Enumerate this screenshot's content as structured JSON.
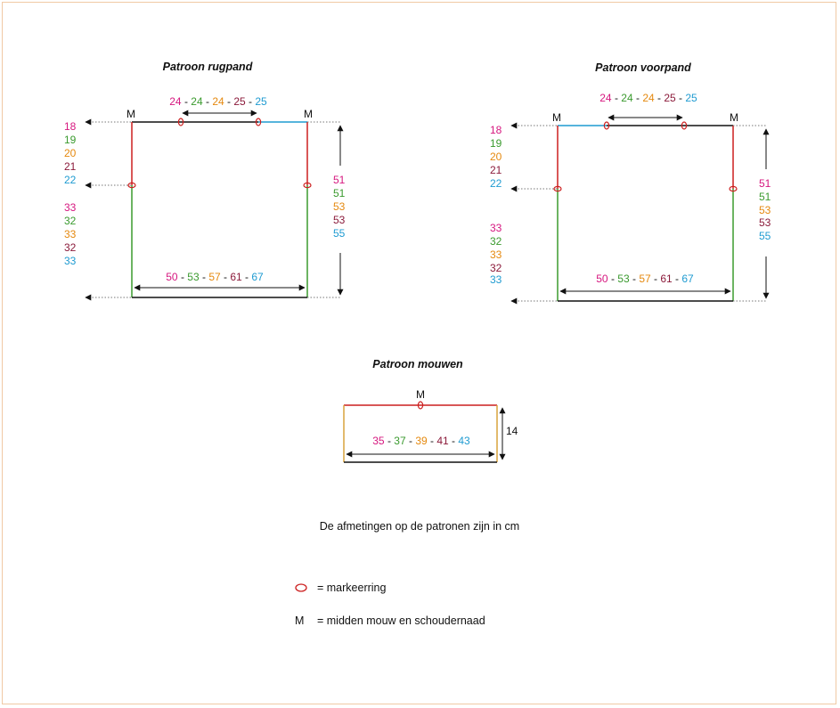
{
  "colors": {
    "magenta": "#d6177f",
    "green": "#3a9a2e",
    "orange": "#e5890f",
    "maroon": "#8b1a3a",
    "cyan": "#1f9bd1",
    "line": "#111111",
    "marker": "#cc1f1f",
    "border": "#f0c9a4"
  },
  "sep": "-",
  "back": {
    "title": "Patroon rugpand",
    "m_left": "M",
    "m_right": "M",
    "top_values": [
      "24",
      "24",
      "24",
      "25",
      "25"
    ],
    "armhole_values": [
      "18",
      "19",
      "20",
      "21",
      "22"
    ],
    "side_values": [
      "33",
      "32",
      "33",
      "32",
      "33"
    ],
    "length_values": [
      "51",
      "51",
      "53",
      "53",
      "55"
    ],
    "width_values": [
      "50",
      "53",
      "57",
      "61",
      "67"
    ]
  },
  "front": {
    "title": "Patroon voorpand",
    "m_left": "M",
    "m_right": "M",
    "top_values": [
      "24",
      "24",
      "24",
      "25",
      "25"
    ],
    "armhole_values": [
      "18",
      "19",
      "20",
      "21",
      "22"
    ],
    "side_values": [
      "33",
      "32",
      "33",
      "32",
      "33"
    ],
    "length_values": [
      "51",
      "51",
      "53",
      "53",
      "55"
    ],
    "width_values": [
      "50",
      "53",
      "57",
      "61",
      "67"
    ]
  },
  "sleeve": {
    "title": "Patroon mouwen",
    "m_label": "M",
    "height_value": "14",
    "width_values": [
      "35",
      "37",
      "39",
      "41",
      "43"
    ]
  },
  "notes": {
    "units": "De afmetingen op de patronen zijn in cm",
    "marker_legend": "= markeerring",
    "m_symbol": "M",
    "m_legend": "= midden mouw en schoudernaad"
  }
}
